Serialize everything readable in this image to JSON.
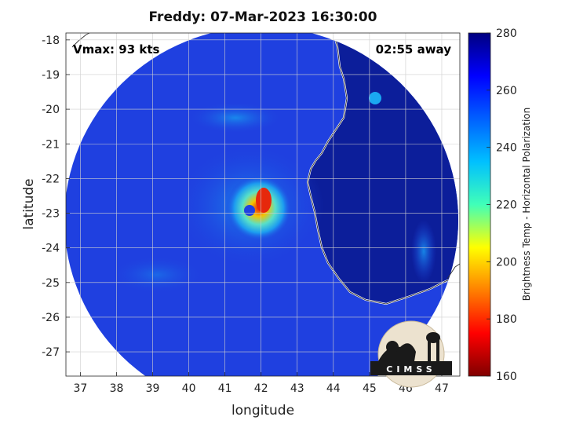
{
  "title": "Freddy: 07-Mar-2023 16:30:00",
  "vmax_label": "Vmax: 93 kts",
  "time_away_label": "02:55 away",
  "xlabel": "longitude",
  "ylabel": "latitude",
  "x_ticks": [
    "37",
    "38",
    "39",
    "40",
    "41",
    "42",
    "43",
    "44",
    "45",
    "46",
    "47"
  ],
  "y_ticks": [
    "-18",
    "-19",
    "-20",
    "-21",
    "-22",
    "-23",
    "-24",
    "-25",
    "-26",
    "-27"
  ],
  "colorbar": {
    "label": "Brightness Temp - Horizontal Polarization",
    "ticks": [
      "160",
      "180",
      "200",
      "220",
      "240",
      "260",
      "280"
    ],
    "range": [
      160,
      280
    ],
    "colormap": "jet"
  },
  "map": {
    "lon_range": [
      36.6,
      47.5
    ],
    "lat_range": [
      -27.7,
      -17.8
    ],
    "storm_center": {
      "lon": 42.0,
      "lat": -22.8
    },
    "land_color": "#0c1e9a",
    "ocean_color": "#1f40e0",
    "coastline_color": "#ffffff",
    "grid": true
  },
  "logo": {
    "text": "CIMSS"
  }
}
